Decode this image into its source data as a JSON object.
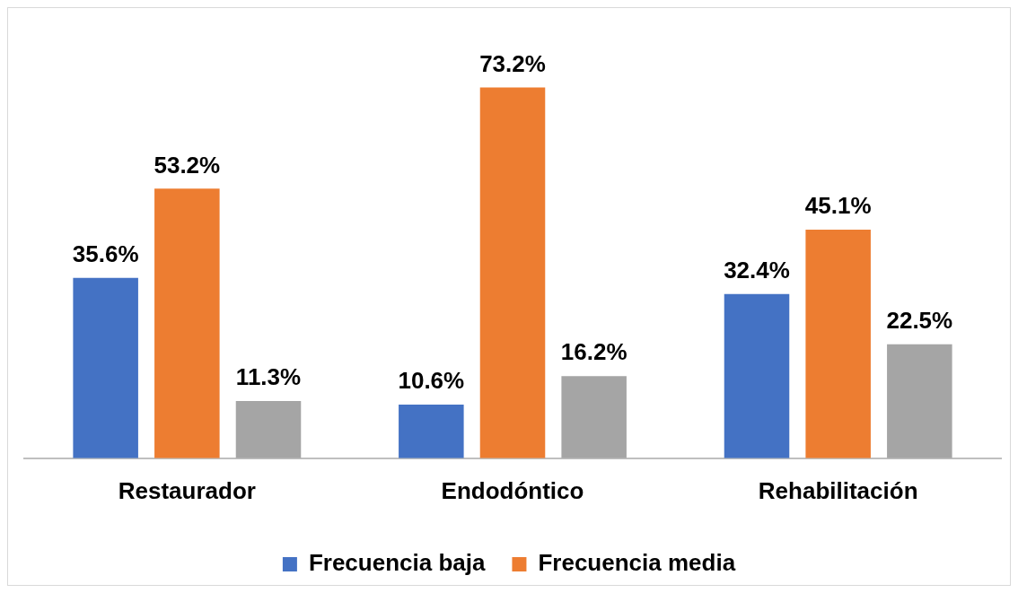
{
  "chart_data": {
    "type": "bar",
    "categories": [
      "Restaurador",
      "Endodóntico",
      "Rehabilitación"
    ],
    "series": [
      {
        "name": "Frecuencia baja",
        "color": "#4472c4",
        "values": [
          35.6,
          10.6,
          32.4
        ],
        "value_labels": [
          "35.6%",
          "10.6%",
          "32.4%"
        ]
      },
      {
        "name": "Frecuencia media",
        "color": "#ed7d31",
        "values": [
          53.2,
          73.2,
          45.1
        ],
        "value_labels": [
          "53.2%",
          "73.2%",
          "45.1%"
        ]
      },
      {
        "color": "#a5a5a5",
        "values": [
          11.3,
          16.2,
          22.5
        ],
        "value_labels": [
          "11.3%",
          "16.2%",
          "22.5%"
        ]
      }
    ],
    "grid": false,
    "legend": "bottom",
    "tick_labels": "x"
  }
}
